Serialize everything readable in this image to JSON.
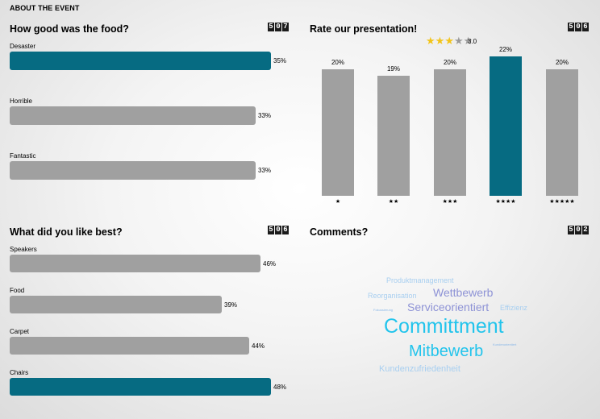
{
  "header": {
    "title": "ABOUT THE EVENT"
  },
  "colors": {
    "highlight": "#066b82",
    "bar": "#a0a0a0"
  },
  "food": {
    "title": "How good was the food?",
    "counter": [
      "5",
      "0",
      "7"
    ],
    "options": [
      {
        "label": "Desaster",
        "pct": "35%",
        "value": 35,
        "highlight": true
      },
      {
        "label": "Horrible",
        "pct": "33%",
        "value": 33,
        "highlight": false
      },
      {
        "label": "Fantastic",
        "pct": "33%",
        "value": 33,
        "highlight": false
      }
    ]
  },
  "presentation": {
    "title": "Rate our presentation!",
    "counter": [
      "5",
      "0",
      "6"
    ],
    "rating_value": "3.0",
    "rating_stars_filled": 3,
    "bars": [
      {
        "stars": "★",
        "pct": "20%",
        "value": 20,
        "highlight": false
      },
      {
        "stars": "★★",
        "pct": "19%",
        "value": 19,
        "highlight": false
      },
      {
        "stars": "★★★",
        "pct": "20%",
        "value": 20,
        "highlight": false
      },
      {
        "stars": "★★★★",
        "pct": "22%",
        "value": 22,
        "highlight": true
      },
      {
        "stars": "★★★★★",
        "pct": "20%",
        "value": 20,
        "highlight": false
      }
    ]
  },
  "liked": {
    "title": "What did you like best?",
    "counter": [
      "5",
      "0",
      "6"
    ],
    "options": [
      {
        "label": "Speakers",
        "pct": "46%",
        "value": 46,
        "highlight": false
      },
      {
        "label": "Food",
        "pct": "39%",
        "value": 39,
        "highlight": false
      },
      {
        "label": "Carpet",
        "pct": "44%",
        "value": 44,
        "highlight": false
      },
      {
        "label": "Chairs",
        "pct": "48%",
        "value": 48,
        "highlight": true
      }
    ]
  },
  "comments": {
    "title": "Comments?",
    "counter": [
      "5",
      "0",
      "2"
    ],
    "words": [
      {
        "text": "Produktmanagement",
        "color": "#a8cff0"
      },
      {
        "text": "Reorganisation",
        "color": "#a8cff0"
      },
      {
        "text": "Wettbewerb",
        "color": "#8e93d6"
      },
      {
        "text": "Fokussierung",
        "color": "#8ab8e8"
      },
      {
        "text": "Serviceorientiert",
        "color": "#8e93d6"
      },
      {
        "text": "Effizienz",
        "color": "#a8cff0"
      },
      {
        "text": "Committment",
        "color": "#22c4ec"
      },
      {
        "text": "Kundenorientiert",
        "color": "#8ab8e8"
      },
      {
        "text": "Mitbewerb",
        "color": "#22c4ec"
      },
      {
        "text": "Kundenzufriedenheit",
        "color": "#a8cff0"
      }
    ]
  }
}
